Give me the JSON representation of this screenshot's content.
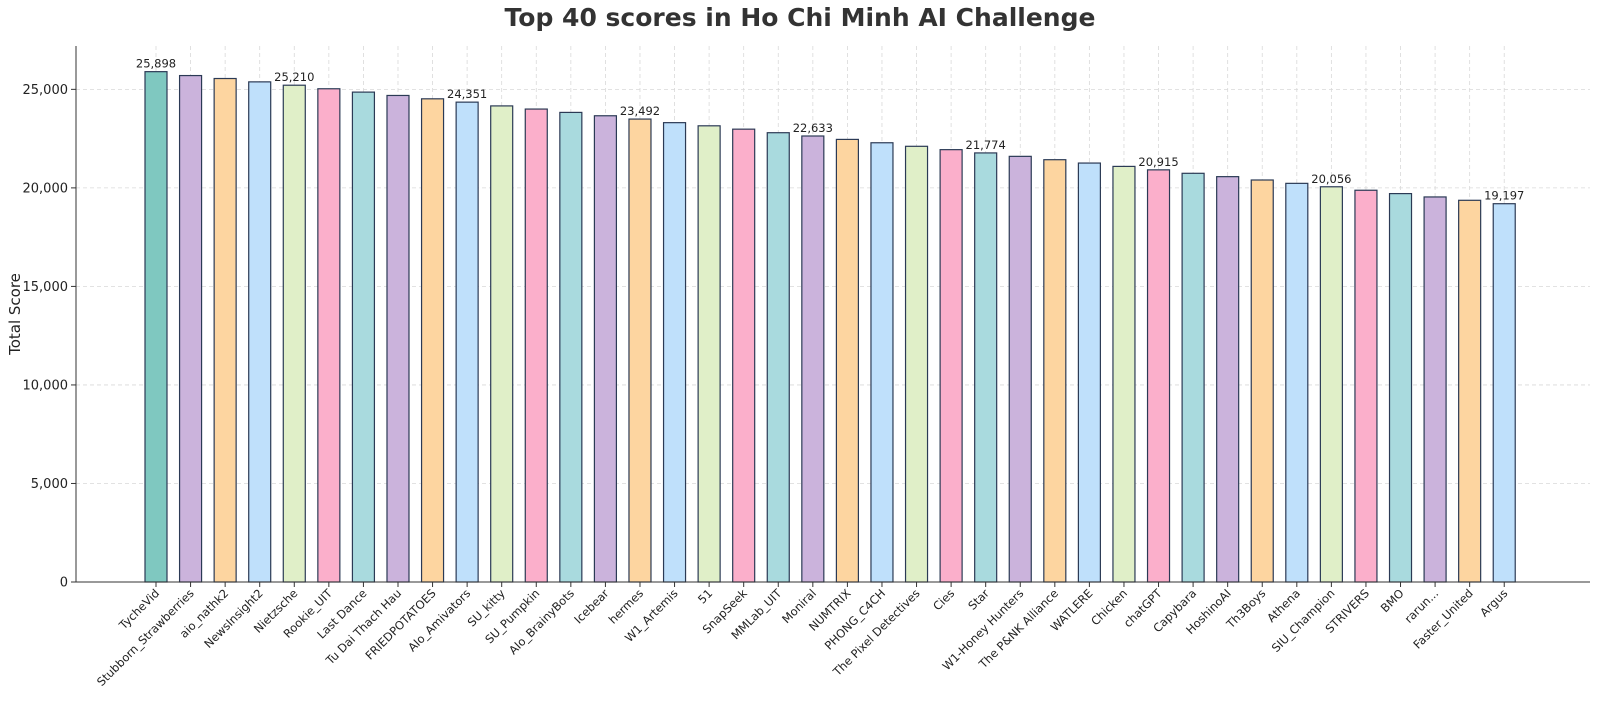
{
  "chart_data": {
    "type": "bar",
    "title": "Top 40 scores in Ho Chi Minh AI Challenge",
    "xlabel": "",
    "ylabel": "Total Score",
    "ylim": [
      0,
      27200
    ],
    "yticks": [
      0,
      5000,
      10000,
      15000,
      20000,
      25000
    ],
    "ytick_labels": [
      "0",
      "5,000",
      "10,000",
      "15,000",
      "20,000",
      "25,000"
    ],
    "grid": "dashed, both axes",
    "categories": [
      "TycheVid",
      "Stubborn_Strawberries",
      "aio_nathk2",
      "NewsInsight2",
      "Nietzsche",
      "Rookie_UIT",
      "Last Dance",
      "Tu Dai Thach Hau",
      "FRIEDPOTATOES",
      "AIo_Amivators",
      "SU_kitty",
      "SU_Pumpkin",
      "AIo_BrainyBots",
      "Icebear",
      "hermes",
      "W1_Artemis",
      "51",
      "SnapSeek",
      "MMLab_UIT",
      "Moniral",
      "NUMTRIX",
      "PHONG_C4CH",
      "The Pixel Detectives",
      "Cies",
      "Star",
      "W1-Honey Hunters",
      "The P&NK Alliance",
      "WATLERE",
      "Chicken",
      "chatGPT",
      "Capybara",
      "HoshinoAI",
      "Th3Boys",
      "Athena",
      "SIU_Champion",
      "STRIVERS",
      "BMO",
      "rarun...",
      "Faster_United",
      "Argus"
    ],
    "values": [
      25898,
      25700,
      25550,
      25380,
      25210,
      25030,
      24860,
      24690,
      24520,
      24351,
      24160,
      24000,
      23830,
      23660,
      23492,
      23310,
      23150,
      22980,
      22800,
      22633,
      22460,
      22290,
      22110,
      21940,
      21774,
      21600,
      21430,
      21260,
      21090,
      20915,
      20740,
      20570,
      20400,
      20230,
      20056,
      19880,
      19710,
      19540,
      19370,
      19197
    ],
    "data_labels": [
      {
        "index": 0,
        "text": "25,898"
      },
      {
        "index": 4,
        "text": "25,210"
      },
      {
        "index": 9,
        "text": "24,351"
      },
      {
        "index": 14,
        "text": "23,492"
      },
      {
        "index": 19,
        "text": "22,633"
      },
      {
        "index": 24,
        "text": "21,774"
      },
      {
        "index": 29,
        "text": "20,915"
      },
      {
        "index": 34,
        "text": "20,056"
      },
      {
        "index": 39,
        "text": "19,197"
      }
    ],
    "colors": [
      "#7fc8c0",
      "#cbb3dc",
      "#fdd5a0",
      "#bfe0fb",
      "#e0efc8",
      "#fbafcb",
      "#a9dade",
      "#cbb3dc",
      "#fdd5a0",
      "#bfe0fb",
      "#e0efc8",
      "#fbafcb",
      "#a9dade",
      "#cbb3dc",
      "#fdd5a0",
      "#bfe0fb",
      "#e0efc8",
      "#fbafcb",
      "#a9dade",
      "#cbb3dc",
      "#fdd5a0",
      "#bfe0fb",
      "#e0efc8",
      "#fbafcb",
      "#a9dade",
      "#cbb3dc",
      "#fdd5a0",
      "#bfe0fb",
      "#e0efc8",
      "#fbafcb",
      "#a9dade",
      "#cbb3dc",
      "#fdd5a0",
      "#bfe0fb",
      "#e0efc8",
      "#fbafcb",
      "#a9dade",
      "#cbb3dc",
      "#fdd5a0",
      "#bfe0fb"
    ],
    "edge_color": "#2b3a55"
  }
}
